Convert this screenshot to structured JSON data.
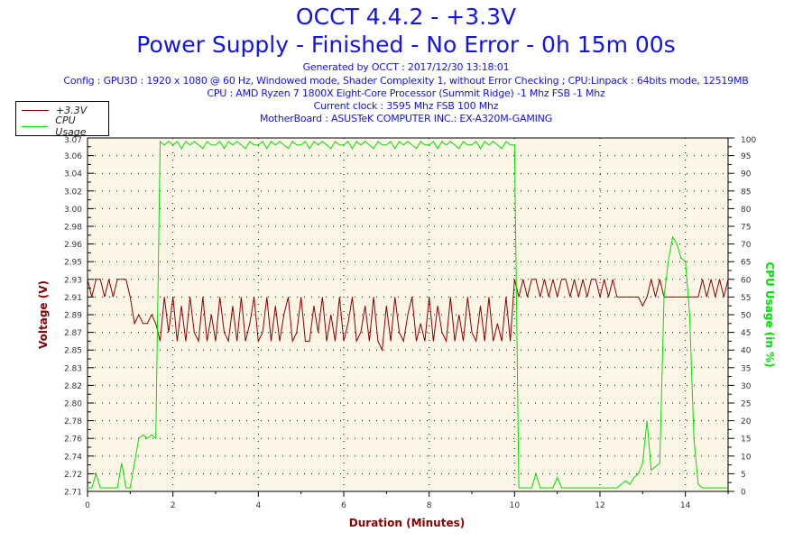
{
  "header": {
    "title": "OCCT 4.4.2 - +3.3V",
    "subtitle": "Power Supply - Finished - No Error - 0h 15m 00s",
    "generated": "Generated by OCCT : 2017/12/30 13:18:01",
    "config": "Config : GPU3D : 1920 x 1080 @ 60 Hz, Windowed mode, Shader Complexity 1, without Error Checking ; CPU:Linpack : 64bits mode, 12519MB",
    "cpu": "CPU : AMD Ryzen 7 1800X Eight-Core Processor (Summit Ridge) -1 Mhz FSB -1 Mhz",
    "clock": "Current clock : 3595 Mhz FSB 100 Mhz",
    "motherboard": "MotherBoard : ASUSTeK COMPUTER INC.: EX-A320M-GAMING"
  },
  "chart_data": {
    "type": "line",
    "xlabel": "Duration (Minutes)",
    "ylabel": "Voltage (V)",
    "y2label": "CPU Usage (in %)",
    "xlim": [
      0,
      15
    ],
    "x_ticks": [
      "0",
      "2",
      "4",
      "6",
      "8",
      "10",
      "12",
      "14"
    ],
    "y_tick_labels": [
      "2.71",
      "2.72",
      "2.74",
      "2.76",
      "2.78",
      "2.80",
      "2.82",
      "2.83",
      "2.85",
      "2.87",
      "2.89",
      "2.91",
      "2.93",
      "2.95",
      "2.96",
      "2.98",
      "3.00",
      "3.02",
      "3.04",
      "3.06",
      "3.07"
    ],
    "y2lim": [
      0,
      100
    ],
    "y2_ticks": [
      "0",
      "5",
      "10",
      "15",
      "20",
      "25",
      "30",
      "35",
      "40",
      "45",
      "50",
      "55",
      "60",
      "65",
      "70",
      "75",
      "80",
      "85",
      "90",
      "95",
      "100"
    ],
    "grid": true,
    "legend_position": "top-left-outside",
    "x_step": 0.1,
    "colors": {
      "voltage": "#8b0000",
      "cpu": "#00e000",
      "plot_bg": "#fdf5e6",
      "title": "#1414e6"
    },
    "series": [
      {
        "name": "+3.3V",
        "axis": "left",
        "values": [
          2.93,
          2.91,
          2.93,
          2.93,
          2.91,
          2.93,
          2.91,
          2.93,
          2.93,
          2.93,
          2.91,
          2.88,
          2.89,
          2.88,
          2.88,
          2.89,
          2.88,
          2.86,
          2.91,
          2.87,
          2.91,
          2.86,
          2.9,
          2.86,
          2.91,
          2.87,
          2.86,
          2.91,
          2.86,
          2.89,
          2.86,
          2.91,
          2.87,
          2.86,
          2.9,
          2.86,
          2.91,
          2.86,
          2.88,
          2.91,
          2.86,
          2.87,
          2.91,
          2.86,
          2.9,
          2.86,
          2.89,
          2.91,
          2.86,
          2.87,
          2.91,
          2.86,
          2.86,
          2.9,
          2.87,
          2.91,
          2.86,
          2.89,
          2.86,
          2.91,
          2.86,
          2.88,
          2.91,
          2.86,
          2.87,
          2.9,
          2.86,
          2.91,
          2.86,
          2.85,
          2.9,
          2.86,
          2.91,
          2.87,
          2.86,
          2.89,
          2.91,
          2.86,
          2.88,
          2.86,
          2.91,
          2.86,
          2.9,
          2.87,
          2.86,
          2.91,
          2.86,
          2.89,
          2.86,
          2.91,
          2.87,
          2.86,
          2.9,
          2.86,
          2.91,
          2.86,
          2.88,
          2.86,
          2.91,
          2.86,
          2.93,
          2.91,
          2.93,
          2.91,
          2.93,
          2.93,
          2.91,
          2.93,
          2.91,
          2.93,
          2.91,
          2.93,
          2.93,
          2.91,
          2.93,
          2.91,
          2.93,
          2.91,
          2.93,
          2.93,
          2.91,
          2.93,
          2.91,
          2.93,
          2.91,
          2.91,
          2.91,
          2.91,
          2.91,
          2.91,
          2.9,
          2.91,
          2.93,
          2.91,
          2.93,
          2.91,
          2.91,
          2.91,
          2.91,
          2.91,
          2.91,
          2.91,
          2.91,
          2.91,
          2.93,
          2.91,
          2.93,
          2.91,
          2.93,
          2.91,
          2.93
        ]
      },
      {
        "name": "CPU Usage",
        "axis": "right",
        "values": [
          1,
          1,
          5,
          1,
          1,
          1,
          1,
          1,
          8,
          1,
          1,
          8,
          15,
          16,
          15,
          16,
          15,
          99,
          98,
          99,
          98,
          99,
          97,
          99,
          98,
          99,
          98,
          97,
          99,
          98,
          98,
          99,
          97,
          99,
          98,
          99,
          98,
          97,
          99,
          98,
          98,
          99,
          97,
          99,
          98,
          99,
          98,
          97,
          99,
          98,
          98,
          99,
          97,
          99,
          98,
          99,
          98,
          97,
          99,
          98,
          98,
          99,
          97,
          99,
          98,
          99,
          98,
          97,
          99,
          98,
          98,
          99,
          97,
          99,
          98,
          99,
          98,
          97,
          99,
          98,
          98,
          99,
          97,
          99,
          98,
          99,
          98,
          97,
          99,
          98,
          98,
          99,
          97,
          99,
          98,
          99,
          98,
          97,
          99,
          98,
          98,
          1,
          1,
          1,
          1,
          5,
          1,
          1,
          1,
          1,
          4,
          1,
          1,
          1,
          1,
          1,
          1,
          1,
          1,
          1,
          1,
          1,
          1,
          1,
          1,
          2,
          3,
          2,
          4,
          5,
          8,
          20,
          6,
          7,
          8,
          55,
          65,
          72,
          70,
          66,
          65,
          50,
          15,
          2,
          1,
          1,
          1,
          1,
          1,
          1,
          1
        ]
      }
    ]
  }
}
